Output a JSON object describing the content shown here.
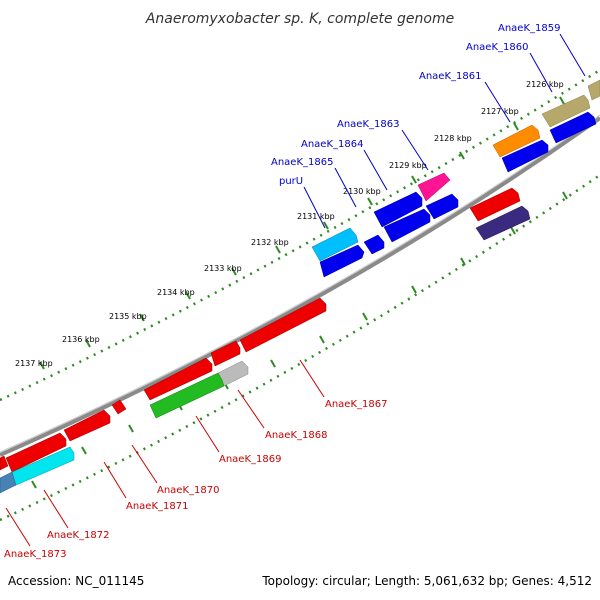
{
  "title": "Anaeromyxobacter sp. K, complete genome",
  "footer": {
    "accession": "Accession: NC_011145",
    "topology": "Topology: circular; Length: 5,061,632 bp; Genes: 4,512"
  },
  "colors": {
    "background": "#ffffff",
    "backbone": "#888888",
    "tick": "#2e8b22",
    "forward_label": "#0000cc",
    "reverse_label": "#cc0000",
    "forward_gene": "#0000ee",
    "reverse_gene": "#ee0000"
  },
  "ticks": [
    "2126 kbp",
    "2127 kbp",
    "2128 kbp",
    "2129 kbp",
    "2130 kbp",
    "2131 kbp",
    "2132 kbp",
    "2133 kbp",
    "2134 kbp",
    "2135 kbp",
    "2136 kbp",
    "2137 kbp"
  ],
  "forward_labels": [
    "AnaeK_1859",
    "AnaeK_1860",
    "AnaeK_1861",
    "AnaeK_1863",
    "AnaeK_1864",
    "AnaeK_1865",
    "purU"
  ],
  "reverse_labels": [
    "AnaeK_1867",
    "AnaeK_1868",
    "AnaeK_1869",
    "AnaeK_1870",
    "AnaeK_1871",
    "AnaeK_1872",
    "AnaeK_1873"
  ]
}
